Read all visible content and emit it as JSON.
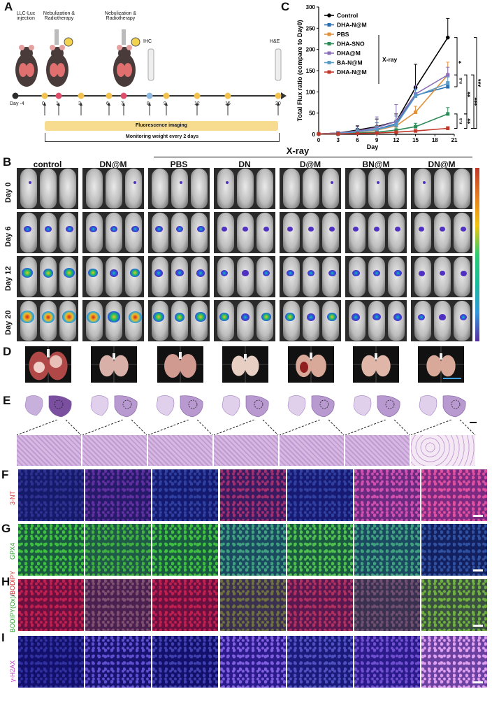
{
  "panels": {
    "A": "A",
    "B": "B",
    "C": "C",
    "D": "D",
    "E": "E",
    "F": "F",
    "G": "G",
    "H": "H",
    "I": "I"
  },
  "timeline": {
    "events": [
      {
        "text": "LLC-Luc injection"
      },
      {
        "text": "Nebulization & Radiotherapy"
      },
      {
        "text": "Nebulization & Radiotherapy"
      },
      {
        "text": "IHC"
      },
      {
        "text": "H&E"
      }
    ],
    "day_prefix": "Day -4",
    "days": [
      "0",
      "1",
      "3",
      "6",
      "7",
      "8",
      "9",
      "12",
      "15",
      "20"
    ],
    "dot_colors": [
      "#2b2b2b",
      "#f2c14e",
      "#e04d6b",
      "#f2c14e",
      "#f2c14e",
      "#e04d6b",
      "#8fb8e0",
      "#f2c14e",
      "#f2c14e",
      "#f2c14e",
      "#f2c14e"
    ],
    "fluorescence_bar": "Fluorescence imaging",
    "monitoring": "Monitoring weight every 2 days"
  },
  "chart_data": {
    "type": "line",
    "ylabel": "Total Flux ratio (compare to Day0)",
    "xlabel": "Day",
    "x": [
      0,
      3,
      6,
      9,
      12,
      15,
      20
    ],
    "xticks": [
      "0",
      "3",
      "6",
      "9",
      "12",
      "15",
      "18",
      "21"
    ],
    "xtick_values": [
      0,
      3,
      6,
      9,
      12,
      15,
      18,
      21
    ],
    "yticks": [
      "0",
      "50",
      "100",
      "150",
      "200",
      "250",
      "300"
    ],
    "ytick_values": [
      0,
      50,
      100,
      150,
      200,
      250,
      300
    ],
    "xlim": [
      0,
      21
    ],
    "ylim": [
      0,
      300
    ],
    "series": [
      {
        "name": "Control",
        "color": "#000000",
        "values": [
          1,
          3,
          10,
          18,
          30,
          110,
          228
        ],
        "err": [
          0,
          3,
          10,
          18,
          18,
          55,
          45
        ]
      },
      {
        "name": "DHA-N@M",
        "color": "#2b6fb0",
        "values": [
          1,
          2,
          6,
          12,
          25,
          92,
          112
        ],
        "err": [
          0,
          2,
          8,
          15,
          18,
          15,
          12
        ]
      },
      {
        "name": "PBS",
        "color": "#e0913a",
        "values": [
          1,
          1,
          5,
          10,
          20,
          52,
          140
        ],
        "err": [
          0,
          2,
          6,
          10,
          12,
          14,
          30
        ]
      },
      {
        "name": "DHA-SNO",
        "color": "#2e8b57",
        "values": [
          1,
          1,
          3,
          5,
          10,
          18,
          48
        ],
        "err": [
          0,
          1,
          3,
          5,
          8,
          8,
          15
        ]
      },
      {
        "name": "DHA@M",
        "color": "#8a6fb8",
        "values": [
          1,
          3,
          8,
          16,
          30,
          95,
          140
        ],
        "err": [
          0,
          4,
          10,
          25,
          40,
          20,
          18
        ]
      },
      {
        "name": "BA-N@M",
        "color": "#5b9bc8",
        "values": [
          1,
          2,
          6,
          11,
          22,
          90,
          120
        ],
        "err": [
          0,
          2,
          5,
          8,
          10,
          15,
          15
        ]
      },
      {
        "name": "DHA-N@M",
        "color": "#c0392b",
        "values": [
          1,
          1,
          2,
          3,
          5,
          8,
          14
        ],
        "err": [
          0,
          1,
          1,
          2,
          2,
          3,
          4
        ]
      }
    ],
    "xray_label": "X-ray",
    "sig": [
      "*",
      "***",
      "n.s",
      "**",
      "***",
      "n.s",
      "**"
    ]
  },
  "imaging": {
    "xray_header": "X-ray",
    "groups": [
      "control",
      "DN@M",
      "PBS",
      "DN",
      "D@M",
      "BN@M",
      "DN@M"
    ],
    "days": [
      "Day 0",
      "Day 6",
      "Day 12",
      "Day 20"
    ]
  },
  "stains": {
    "F": "3-NT",
    "G": "GPX4",
    "H_green": "BODIPY(Ox)",
    "H_sep": "/",
    "H_red": "BODIPY",
    "I": "γ-H2AX"
  }
}
